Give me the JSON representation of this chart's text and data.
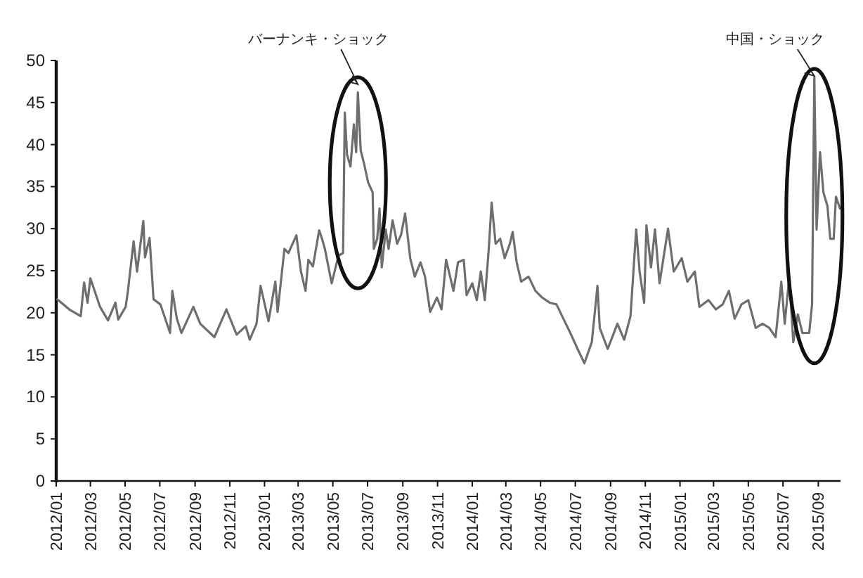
{
  "chart_data": {
    "type": "line",
    "color": "#6e6e6e",
    "x": [
      "2012-01-03",
      "2012-01-24",
      "2012-02-13",
      "2012-02-19",
      "2012-02-25",
      "2012-03-01",
      "2012-03-18",
      "2012-04-01",
      "2012-04-14",
      "2012-04-19",
      "2012-05-02",
      "2012-05-06",
      "2012-05-16",
      "2012-05-22",
      "2012-06-02",
      "2012-06-05",
      "2012-06-13",
      "2012-06-20",
      "2012-07-02",
      "2012-07-19",
      "2012-07-23",
      "2012-07-31",
      "2012-08-08",
      "2012-08-29",
      "2012-09-10",
      "2012-10-05",
      "2012-10-26",
      "2012-11-13",
      "2012-11-29",
      "2012-12-06",
      "2012-12-18",
      "2012-12-25",
      "2013-01-08",
      "2013-01-20",
      "2013-01-24",
      "2013-02-05",
      "2013-02-12",
      "2013-02-26",
      "2013-03-06",
      "2013-03-14",
      "2013-03-19",
      "2013-03-27",
      "2013-04-07",
      "2013-04-12",
      "2013-04-17",
      "2013-04-29",
      "2013-05-11",
      "2013-05-19",
      "2013-05-22",
      "2013-05-26",
      "2013-06-01",
      "2013-06-07",
      "2013-06-11",
      "2013-06-14",
      "2013-06-19",
      "2013-06-25",
      "2013-07-02",
      "2013-07-10",
      "2013-07-12",
      "2013-07-18",
      "2013-07-22",
      "2013-07-26",
      "2013-08-02",
      "2013-08-07",
      "2013-08-14",
      "2013-08-22",
      "2013-08-29",
      "2013-09-05",
      "2013-09-14",
      "2013-09-22",
      "2013-10-02",
      "2013-10-10",
      "2013-10-19",
      "2013-10-31",
      "2013-11-08",
      "2013-11-16",
      "2013-11-29",
      "2013-12-07",
      "2013-12-17",
      "2013-12-22",
      "2014-01-01",
      "2014-01-09",
      "2014-01-16",
      "2014-01-23",
      "2014-01-30",
      "2014-02-04",
      "2014-02-11",
      "2014-02-19",
      "2014-02-27",
      "2014-03-08",
      "2014-03-13",
      "2014-03-20",
      "2014-03-28",
      "2014-04-10",
      "2014-04-22",
      "2014-05-04",
      "2014-05-17",
      "2014-05-29",
      "2014-06-10",
      "2014-06-23",
      "2014-07-05",
      "2014-07-17",
      "2014-07-30",
      "2014-08-09",
      "2014-08-13",
      "2014-08-27",
      "2014-09-13",
      "2014-09-25",
      "2014-10-06",
      "2014-10-16",
      "2014-10-22",
      "2014-10-30",
      "2014-11-03",
      "2014-11-11",
      "2014-11-18",
      "2014-11-26",
      "2014-12-11",
      "2014-12-21",
      "2015-01-04",
      "2015-01-14",
      "2015-01-27",
      "2015-02-04",
      "2015-02-20",
      "2015-03-05",
      "2015-03-17",
      "2015-03-28",
      "2015-04-07",
      "2015-04-19",
      "2015-05-01",
      "2015-05-14",
      "2015-05-26",
      "2015-06-07",
      "2015-06-18",
      "2015-06-28",
      "2015-07-04",
      "2015-07-12",
      "2015-07-19",
      "2015-07-27",
      "2015-08-04",
      "2015-08-16",
      "2015-08-21",
      "2015-08-25",
      "2015-08-29",
      "2015-09-04",
      "2015-09-10",
      "2015-09-17",
      "2015-09-22",
      "2015-09-28",
      "2015-10-02",
      "2015-10-09"
    ],
    "values": [
      21.6,
      20.4,
      19.6,
      23.6,
      21.2,
      24.1,
      20.7,
      19.1,
      21.2,
      19.2,
      20.7,
      22.6,
      28.5,
      24.9,
      30.9,
      26.6,
      28.9,
      21.6,
      21.0,
      17.6,
      22.6,
      19.3,
      17.6,
      20.7,
      18.7,
      17.1,
      20.4,
      17.4,
      18.4,
      16.8,
      18.7,
      23.2,
      19.0,
      23.7,
      20.1,
      27.6,
      27.1,
      29.2,
      24.9,
      22.6,
      26.3,
      25.5,
      29.8,
      28.8,
      27.6,
      23.5,
      26.8,
      27.1,
      43.8,
      38.8,
      37.4,
      42.4,
      39.1,
      46.2,
      39.3,
      37.7,
      35.5,
      34.3,
      27.6,
      28.8,
      32.4,
      25.4,
      29.9,
      27.6,
      31.0,
      28.2,
      29.3,
      31.8,
      26.5,
      24.3,
      26.0,
      24.3,
      20.1,
      21.8,
      20.4,
      26.3,
      22.6,
      26.0,
      26.3,
      22.1,
      23.5,
      21.5,
      24.9,
      21.5,
      27.6,
      33.1,
      28.2,
      28.8,
      26.5,
      28.2,
      29.6,
      26.0,
      23.7,
      24.3,
      22.6,
      21.8,
      21.2,
      21.0,
      19.3,
      17.5,
      15.7,
      14.0,
      16.5,
      23.2,
      18.2,
      15.7,
      18.7,
      16.8,
      19.6,
      29.9,
      24.9,
      21.2,
      30.4,
      25.4,
      29.9,
      23.5,
      30.0,
      24.9,
      26.5,
      23.7,
      24.9,
      20.7,
      21.5,
      20.4,
      21.0,
      22.6,
      19.3,
      21.0,
      21.5,
      18.2,
      18.7,
      18.2,
      17.1,
      23.7,
      18.7,
      24.3,
      16.5,
      19.8,
      17.6,
      17.6,
      21.0,
      48.0,
      29.9,
      39.1,
      34.3,
      32.7,
      28.8,
      28.8,
      33.8,
      32.4
    ],
    "xlim": [
      "2012-01-01",
      "2015-10-10"
    ],
    "ylim": [
      0,
      50
    ],
    "yticks": [
      0,
      5,
      10,
      15,
      20,
      25,
      30,
      35,
      40,
      45,
      50
    ],
    "xticks": [
      {
        "value": "2012-01",
        "label": "2012/01"
      },
      {
        "value": "2012-03",
        "label": "2012/03"
      },
      {
        "value": "2012-05",
        "label": "2012/05"
      },
      {
        "value": "2012-07",
        "label": "2012/07"
      },
      {
        "value": "2012-09",
        "label": "2012/09"
      },
      {
        "value": "2012-11",
        "label": "2012/11"
      },
      {
        "value": "2013-01",
        "label": "2013/01"
      },
      {
        "value": "2013-03",
        "label": "2013/03"
      },
      {
        "value": "2013-05",
        "label": "2013/05"
      },
      {
        "value": "2013-07",
        "label": "2013/07"
      },
      {
        "value": "2013-09",
        "label": "2013/09"
      },
      {
        "value": "2013-11",
        "label": "2013/11"
      },
      {
        "value": "2014-01",
        "label": "2014/01"
      },
      {
        "value": "2014-03",
        "label": "2014/03"
      },
      {
        "value": "2014-05",
        "label": "2014/05"
      },
      {
        "value": "2014-07",
        "label": "2014/07"
      },
      {
        "value": "2014-09",
        "label": "2014/09"
      },
      {
        "value": "2014-11",
        "label": "2014/11"
      },
      {
        "value": "2015-01",
        "label": "2015/01"
      },
      {
        "value": "2015-03",
        "label": "2015/03"
      },
      {
        "value": "2015-05",
        "label": "2015/05"
      },
      {
        "value": "2015-07",
        "label": "2015/07"
      },
      {
        "value": "2015-09",
        "label": "2015/09"
      }
    ],
    "annotations": [
      {
        "text": "バーナンキ・ショック",
        "x": "2013-06-14",
        "y": 47
      },
      {
        "text": "中国・ショック",
        "x": "2015-08-25",
        "y": 48
      }
    ]
  }
}
